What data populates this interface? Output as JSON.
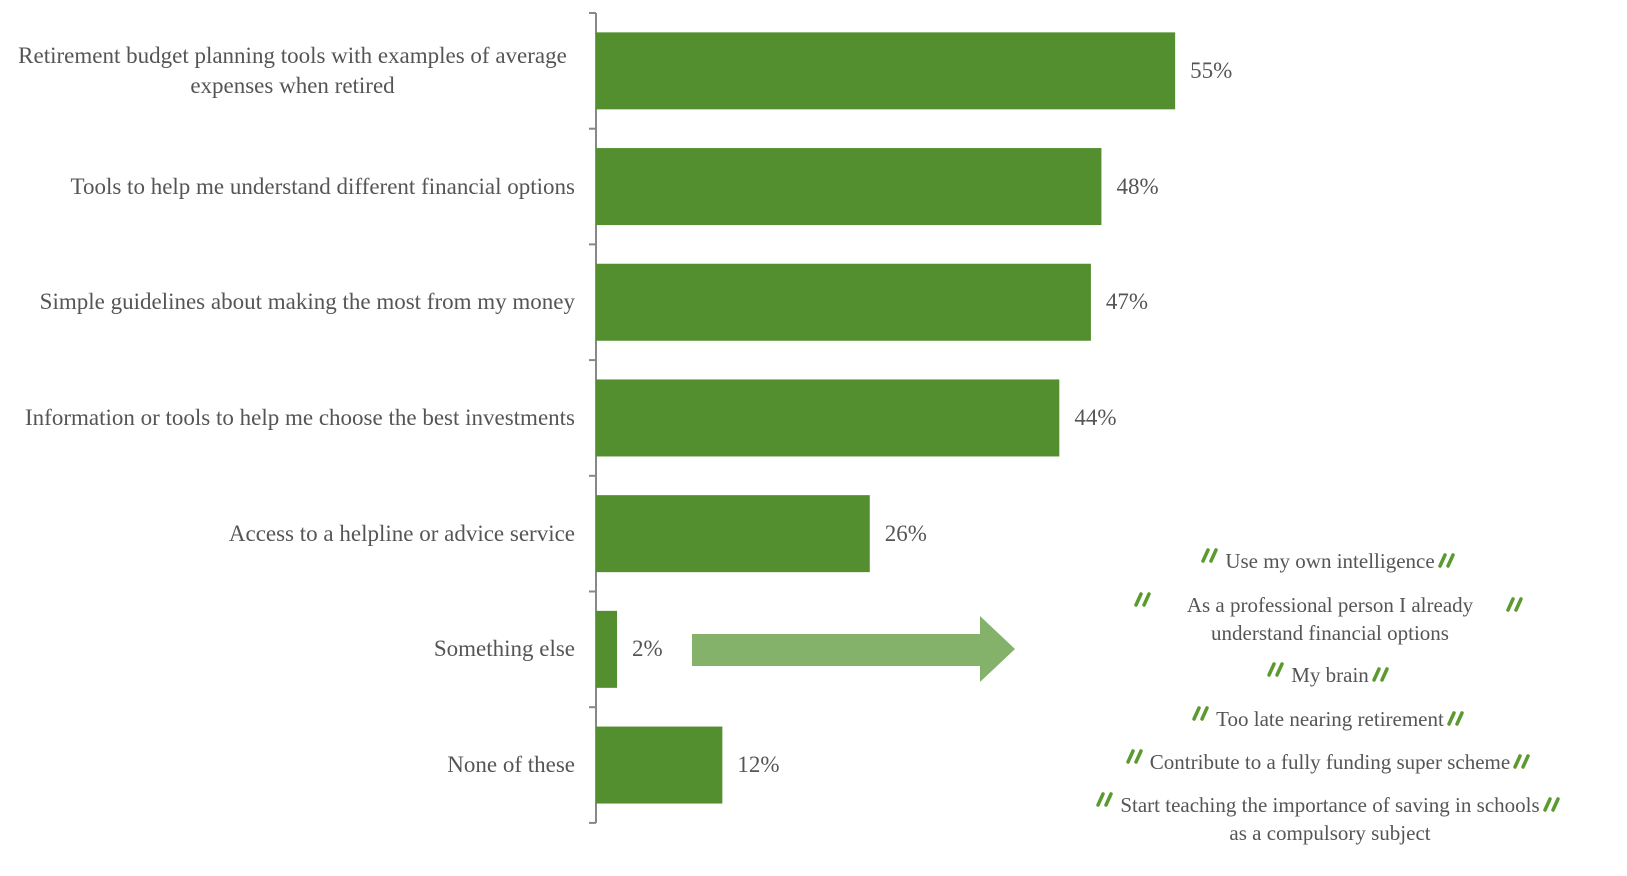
{
  "chart_data": {
    "type": "bar",
    "orientation": "horizontal",
    "color": "#548f2f",
    "categories": [
      "Retirement budget planning tools with examples of average expenses when retired",
      "Tools to help me understand different financial options",
      "Simple guidelines about making the most from my money",
      "Information or tools to help me choose the best investments",
      "Access to a helpline or advice service",
      "Something else",
      "None of these"
    ],
    "values": [
      55,
      48,
      47,
      44,
      26,
      2,
      12
    ],
    "value_labels": [
      "55%",
      "48%",
      "47%",
      "44%",
      "26%",
      "2%",
      "12%"
    ],
    "annotations": [
      "Use my own intelligence",
      "As a professional person I already understand financial options",
      "My brain",
      "Too late nearing retirement",
      "Contribute to a fully funding super scheme",
      "Start teaching the importance of saving in schools as a compulsory subject"
    ]
  }
}
